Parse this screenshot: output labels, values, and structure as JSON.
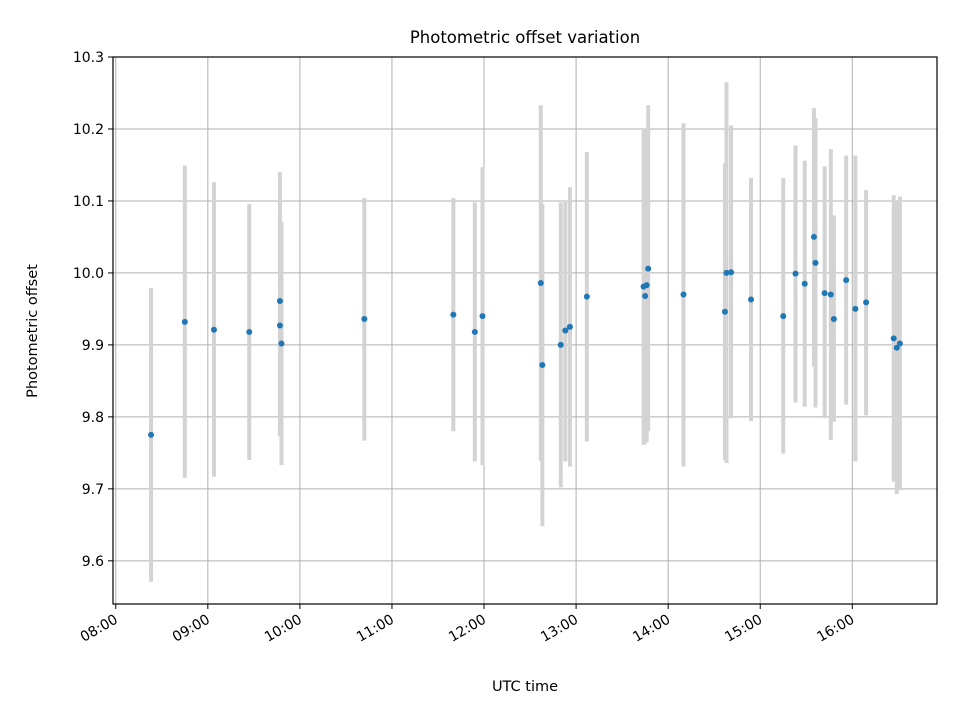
{
  "chart_data": {
    "type": "scatter",
    "title": "Photometric offset variation",
    "xlabel": "UTC time",
    "ylabel": "Photometric offset",
    "xlim_hours": [
      7.97,
      16.92
    ],
    "ylim": [
      9.54,
      10.3
    ],
    "x_ticks": [
      "08:00",
      "09:00",
      "10:00",
      "11:00",
      "12:00",
      "13:00",
      "14:00",
      "15:00",
      "16:00"
    ],
    "y_ticks": [
      9.6,
      9.7,
      9.8,
      9.9,
      10.0,
      10.1,
      10.2,
      10.3
    ],
    "y_tick_labels": [
      "9.6",
      "9.7",
      "9.8",
      "9.9",
      "10.0",
      "10.1",
      "10.2",
      "10.3"
    ],
    "grid": true,
    "colors": {
      "point": "#1f77b4",
      "errorbar": "#d3d3d3",
      "grid": "#b0b0b0"
    },
    "points": [
      {
        "t": "08:23",
        "y": 9.775,
        "lo": 9.571,
        "hi": 9.979
      },
      {
        "t": "08:45",
        "y": 9.932,
        "lo": 9.715,
        "hi": 10.149
      },
      {
        "t": "09:04",
        "y": 9.921,
        "lo": 9.717,
        "hi": 10.126
      },
      {
        "t": "09:27",
        "y": 9.918,
        "lo": 9.74,
        "hi": 10.096
      },
      {
        "t": "09:47",
        "y": 9.961,
        "lo": 9.781,
        "hi": 10.14
      },
      {
        "t": "09:47",
        "y": 9.927,
        "lo": 9.773,
        "hi": 10.08
      },
      {
        "t": "09:48",
        "y": 9.902,
        "lo": 9.733,
        "hi": 10.071
      },
      {
        "t": "10:42",
        "y": 9.936,
        "lo": 9.767,
        "hi": 10.104
      },
      {
        "t": "11:40",
        "y": 9.942,
        "lo": 9.78,
        "hi": 10.104
      },
      {
        "t": "11:54",
        "y": 9.918,
        "lo": 9.738,
        "hi": 10.098
      },
      {
        "t": "11:59",
        "y": 9.94,
        "lo": 9.733,
        "hi": 10.147
      },
      {
        "t": "12:37",
        "y": 9.986,
        "lo": 9.739,
        "hi": 10.233
      },
      {
        "t": "12:38",
        "y": 9.872,
        "lo": 9.648,
        "hi": 10.096
      },
      {
        "t": "12:50",
        "y": 9.9,
        "lo": 9.702,
        "hi": 10.098
      },
      {
        "t": "12:53",
        "y": 9.92,
        "lo": 9.738,
        "hi": 10.101
      },
      {
        "t": "12:56",
        "y": 9.925,
        "lo": 9.731,
        "hi": 10.119
      },
      {
        "t": "13:07",
        "y": 9.967,
        "lo": 9.766,
        "hi": 10.168
      },
      {
        "t": "13:44",
        "y": 9.981,
        "lo": 9.761,
        "hi": 10.201
      },
      {
        "t": "13:45",
        "y": 9.968,
        "lo": 9.763,
        "hi": 10.174
      },
      {
        "t": "13:46",
        "y": 9.983,
        "lo": 9.765,
        "hi": 10.201
      },
      {
        "t": "13:47",
        "y": 10.006,
        "lo": 9.78,
        "hi": 10.233
      },
      {
        "t": "14:10",
        "y": 9.97,
        "lo": 9.731,
        "hi": 10.208
      },
      {
        "t": "14:37",
        "y": 9.946,
        "lo": 9.74,
        "hi": 10.152
      },
      {
        "t": "14:38",
        "y": 10.0,
        "lo": 9.736,
        "hi": 10.265
      },
      {
        "t": "14:41",
        "y": 10.001,
        "lo": 9.798,
        "hi": 10.205
      },
      {
        "t": "14:54",
        "y": 9.963,
        "lo": 9.794,
        "hi": 10.132
      },
      {
        "t": "15:15",
        "y": 9.94,
        "lo": 9.749,
        "hi": 10.132
      },
      {
        "t": "15:23",
        "y": 9.999,
        "lo": 9.82,
        "hi": 10.177
      },
      {
        "t": "15:29",
        "y": 9.985,
        "lo": 9.814,
        "hi": 10.156
      },
      {
        "t": "15:35",
        "y": 10.05,
        "lo": 9.87,
        "hi": 10.229
      },
      {
        "t": "15:36",
        "y": 10.014,
        "lo": 9.813,
        "hi": 10.215
      },
      {
        "t": "15:42",
        "y": 9.972,
        "lo": 9.798,
        "hi": 10.148
      },
      {
        "t": "15:46",
        "y": 9.97,
        "lo": 9.768,
        "hi": 10.172
      },
      {
        "t": "15:48",
        "y": 9.936,
        "lo": 9.793,
        "hi": 10.08
      },
      {
        "t": "15:56",
        "y": 9.99,
        "lo": 9.817,
        "hi": 10.163
      },
      {
        "t": "16:02",
        "y": 9.95,
        "lo": 9.738,
        "hi": 10.163
      },
      {
        "t": "16:09",
        "y": 9.959,
        "lo": 9.802,
        "hi": 10.115
      },
      {
        "t": "16:27",
        "y": 9.909,
        "lo": 9.71,
        "hi": 10.108
      },
      {
        "t": "16:29",
        "y": 9.896,
        "lo": 9.693,
        "hi": 10.1
      },
      {
        "t": "16:31",
        "y": 9.902,
        "lo": 9.698,
        "hi": 10.106
      }
    ]
  }
}
